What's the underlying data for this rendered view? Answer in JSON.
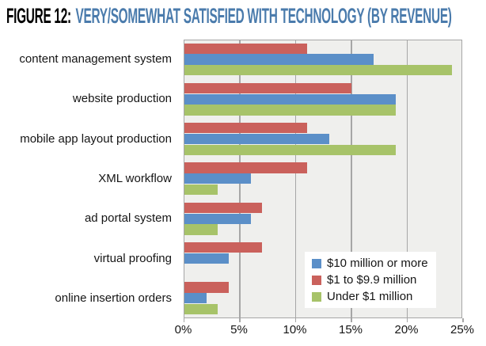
{
  "title": {
    "prefix": "FIGURE 12:",
    "text": "VERY/SOMEWHAT SATISFIED WITH TECHNOLOGY (BY REVENUE)",
    "accent_color": "#4A7BAC",
    "prefix_color": "#000000"
  },
  "chart_data": {
    "type": "bar",
    "orientation": "horizontal",
    "title": "FIGURE 12: VERY/SOMEWHAT SATISFIED WITH TECHNOLOGY (BY REVENUE)",
    "categories": [
      "content management system",
      "website production",
      "mobile app layout production",
      "XML workflow",
      "ad portal system",
      "virtual proofing",
      "online insertion orders"
    ],
    "series": [
      {
        "name": "$10 million or more",
        "color": "#5B8FC8",
        "values": [
          17,
          19,
          13,
          6,
          6,
          4,
          2
        ]
      },
      {
        "name": "$1 to $9.9 million",
        "color": "#CA615C",
        "values": [
          11,
          15,
          11,
          11,
          7,
          7,
          4
        ]
      },
      {
        "name": "Under $1 million",
        "color": "#A7C369",
        "values": [
          24,
          19,
          19,
          3,
          3,
          0,
          3
        ]
      }
    ],
    "bar_order_top_to_bottom": [
      "$1 to $9.9 million",
      "$10 million or more",
      "Under $1 million"
    ],
    "xlabel": "",
    "ylabel": "",
    "xlim": [
      0,
      25
    ],
    "x_tick_step": 5,
    "x_tick_labels": [
      "0%",
      "5%",
      "10%",
      "15%",
      "20%",
      "25%"
    ],
    "grid": "vertical",
    "legend_position": "inside bottom-right",
    "plot_bg_color": "#EFEFED",
    "grid_color": "#A6A6A6"
  }
}
